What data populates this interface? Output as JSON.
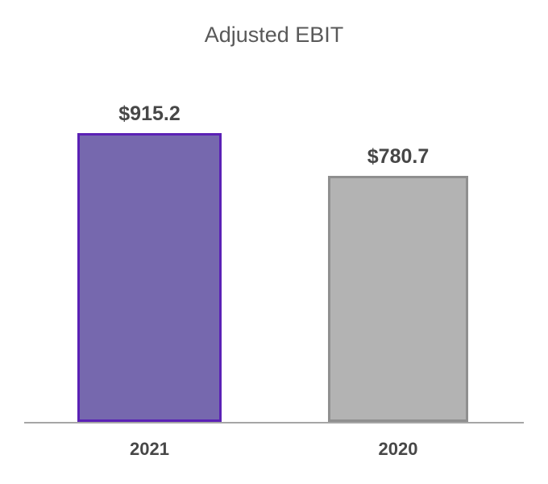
{
  "chart_data": {
    "type": "bar",
    "title": "Adjusted EBIT",
    "categories": [
      "2021",
      "2020"
    ],
    "values": [
      915.2,
      780.7
    ],
    "value_labels": [
      "$915.2",
      "$780.7"
    ],
    "xlabel": "",
    "ylabel": "",
    "ylim": [
      0,
      980
    ],
    "grid": false,
    "legend_position": "none",
    "baseline_axis": "x",
    "series_colors": [
      {
        "fill": "#7668AE",
        "border": "#5B21B5"
      },
      {
        "fill": "#B3B3B3",
        "border": "#8F8F8F"
      }
    ],
    "axis_line_color": "#A6A6A6",
    "title_color": "#595959",
    "label_color": "#474747"
  }
}
